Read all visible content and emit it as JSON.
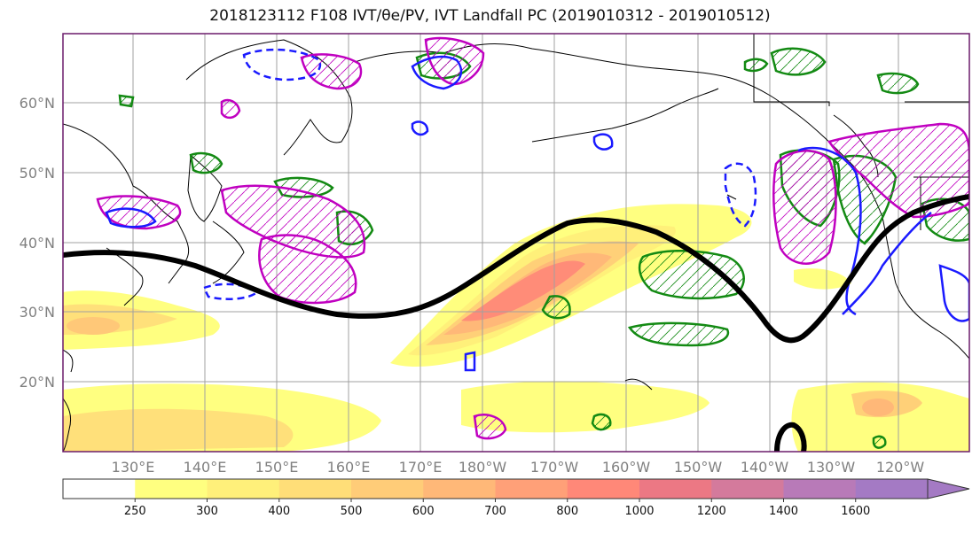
{
  "title": "2018123112 F108 IVT/θe/PV, IVT Landfall PC (2019010312 - 2019010512)",
  "colors": {
    "ocean": "#ffffff",
    "border": "#6b1c6b",
    "grid": "#a0a0a0",
    "coast": "#000000",
    "green_contour": "#138a13",
    "blue_contour": "#1a1aff",
    "magenta_contour": "#c000c0",
    "black_contour": "#000000"
  },
  "lat_labels": [
    "60°N",
    "50°N",
    "40°N",
    "30°N",
    "20°N"
  ],
  "lon_labels": [
    "130°E",
    "140°E",
    "150°E",
    "160°E",
    "170°E",
    "180°W",
    "170°W",
    "160°W",
    "150°W",
    "140°W",
    "130°W",
    "120°W"
  ],
  "colorbar": {
    "ticks": [
      "250",
      "300",
      "400",
      "500",
      "600",
      "700",
      "800",
      "1000",
      "1200",
      "1400",
      "1600"
    ],
    "colors": [
      "#ffffff",
      "#ffff80",
      "#fff07a",
      "#ffde78",
      "#ffcc78",
      "#ffb878",
      "#ffa078",
      "#ff8878",
      "#ec7884",
      "#d47a9c",
      "#b87ab8",
      "#a47ac4"
    ]
  }
}
